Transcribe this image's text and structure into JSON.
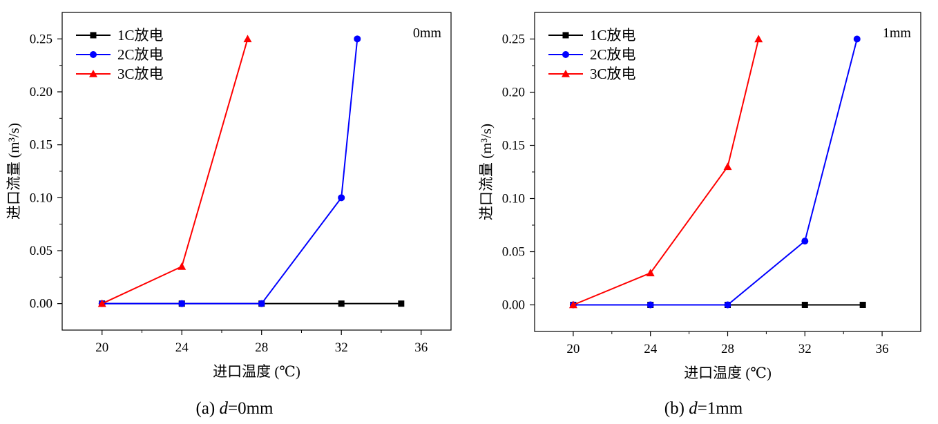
{
  "chart_data": [
    {
      "type": "line",
      "annotation": "0mm",
      "caption": {
        "prefix": "(a) ",
        "var": "d",
        "suffix": "=0mm"
      },
      "xlabel": "进口温度 (℃)",
      "ylabel": "进口流量 (m³/s)",
      "xlim": [
        18,
        37.5
      ],
      "ylim": [
        -0.025,
        0.275
      ],
      "xticks": [
        20,
        24,
        28,
        32,
        36
      ],
      "yticks": [
        "0.00",
        "0.05",
        "0.10",
        "0.15",
        "0.20",
        "0.25"
      ],
      "legend_position": "top-left",
      "series": [
        {
          "name": "1C放电",
          "color": "#000000",
          "marker": "square",
          "x": [
            20,
            24,
            28,
            32,
            35
          ],
          "y": [
            0,
            0,
            0,
            0,
            0
          ]
        },
        {
          "name": "2C放电",
          "color": "#0000ff",
          "marker": "circle",
          "x": [
            20,
            24,
            28,
            32,
            32.8
          ],
          "y": [
            0,
            0,
            0,
            0.1,
            0.25
          ]
        },
        {
          "name": "3C放电",
          "color": "#ff0000",
          "marker": "triangle",
          "x": [
            20,
            24,
            27.3
          ],
          "y": [
            0,
            0.035,
            0.25
          ]
        }
      ]
    },
    {
      "type": "line",
      "annotation": "1mm",
      "caption": {
        "prefix": "(b) ",
        "var": "d",
        "suffix": "=1mm"
      },
      "xlabel": "进口温度 (℃)",
      "ylabel": "进口流量 (m³/s)",
      "xlim": [
        18,
        38
      ],
      "ylim": [
        -0.025,
        0.275
      ],
      "xticks": [
        20,
        24,
        28,
        32,
        36
      ],
      "yticks": [
        "0.00",
        "0.05",
        "0.10",
        "0.15",
        "0.20",
        "0.25"
      ],
      "legend_position": "top-left",
      "series": [
        {
          "name": "1C放电",
          "color": "#000000",
          "marker": "square",
          "x": [
            20,
            24,
            28,
            32,
            35
          ],
          "y": [
            0,
            0,
            0,
            0,
            0
          ]
        },
        {
          "name": "2C放电",
          "color": "#0000ff",
          "marker": "circle",
          "x": [
            20,
            24,
            28,
            32,
            34.7
          ],
          "y": [
            0,
            0,
            0,
            0.06,
            0.25
          ]
        },
        {
          "name": "3C放电",
          "color": "#ff0000",
          "marker": "triangle",
          "x": [
            20,
            24,
            28,
            29.6
          ],
          "y": [
            0,
            0.03,
            0.13,
            0.25
          ]
        }
      ]
    }
  ]
}
